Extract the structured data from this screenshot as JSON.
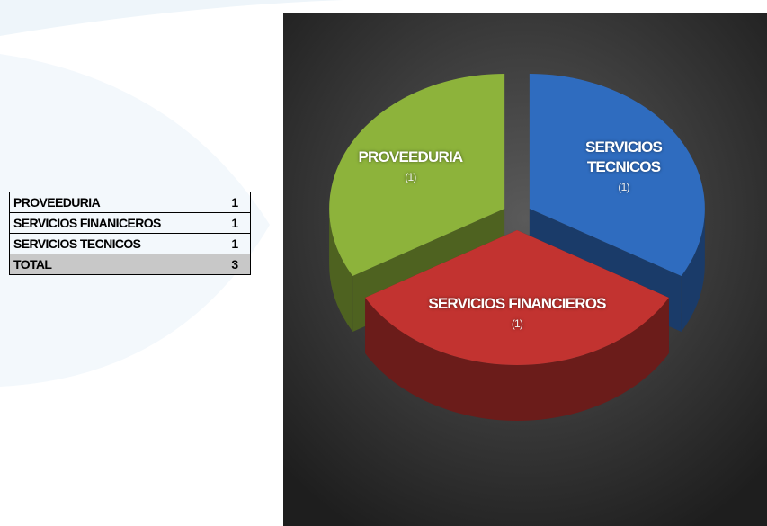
{
  "table": {
    "rows": [
      [
        "PROVEEDURIA",
        1
      ],
      [
        "SERVICIOS FINANICEROS",
        1
      ],
      [
        "SERVICIOS TECNICOS",
        1
      ],
      [
        "TOTAL",
        3
      ]
    ]
  },
  "chart_data": {
    "type": "pie",
    "categories": [
      "PROVEEDURIA",
      "SERVICIOS FINANCIEROS",
      "SERVICIOS TECNICOS"
    ],
    "values": [
      1,
      1,
      1
    ],
    "value_labels": [
      "(1)",
      "(1)",
      "(1)"
    ],
    "colors": [
      "#8db33b",
      "#c23330",
      "#2f6cbf"
    ]
  }
}
